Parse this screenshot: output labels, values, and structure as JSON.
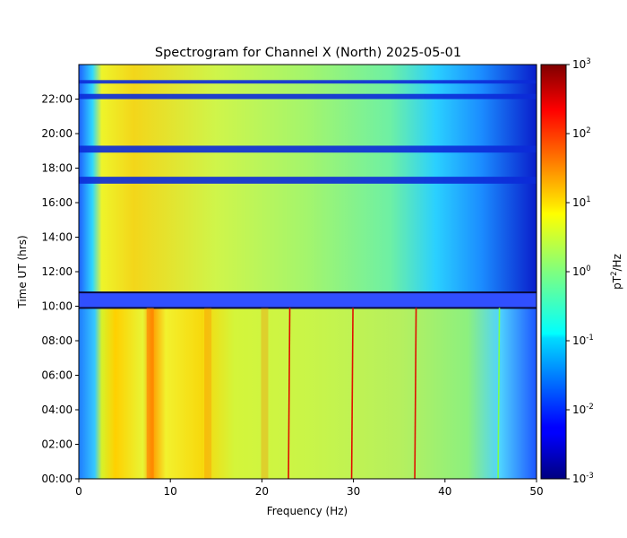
{
  "chart_data": {
    "type": "heatmap",
    "title": "Spectrogram for Channel X (North) 2025-05-01",
    "xlabel": "Frequency (Hz)",
    "ylabel": "Time UT (hrs)",
    "xlim": [
      0,
      50
    ],
    "ylim": [
      0,
      24
    ],
    "x_ticks": [
      0,
      10,
      20,
      30,
      40,
      50
    ],
    "x_tick_labels": [
      "0",
      "10",
      "20",
      "30",
      "40",
      "50"
    ],
    "y_ticks": [
      0,
      2,
      4,
      6,
      8,
      10,
      12,
      14,
      16,
      18,
      20,
      22
    ],
    "y_tick_labels": [
      "00:00",
      "02:00",
      "04:00",
      "06:00",
      "08:00",
      "10:00",
      "12:00",
      "14:00",
      "16:00",
      "18:00",
      "20:00",
      "22:00"
    ],
    "colorbar": {
      "label_base": "pT",
      "label_sup": "2",
      "label_rest": "/Hz",
      "scale": "log",
      "range": [
        0.001,
        1000
      ],
      "colormap": "jet",
      "ticks": [
        {
          "base": "10",
          "exp": "-3",
          "value": 0.001
        },
        {
          "base": "10",
          "exp": "-2",
          "value": 0.01
        },
        {
          "base": "10",
          "exp": "-1",
          "value": 0.1
        },
        {
          "base": "10",
          "exp": "0",
          "value": 1
        },
        {
          "base": "10",
          "exp": "1",
          "value": 10
        },
        {
          "base": "10",
          "exp": "2",
          "value": 100
        },
        {
          "base": "10",
          "exp": "3",
          "value": 1000
        }
      ]
    },
    "spectral_lines_hz": [
      7.8,
      14.1,
      20.3,
      22.9,
      29.8,
      36.7,
      45.8
    ],
    "low_power_time_bands_hrs": [
      [
        9.9,
        10.8
      ],
      [
        17.1,
        17.5
      ],
      [
        18.9,
        19.3
      ],
      [
        22.0,
        22.3
      ],
      [
        22.9,
        23.1
      ]
    ]
  }
}
